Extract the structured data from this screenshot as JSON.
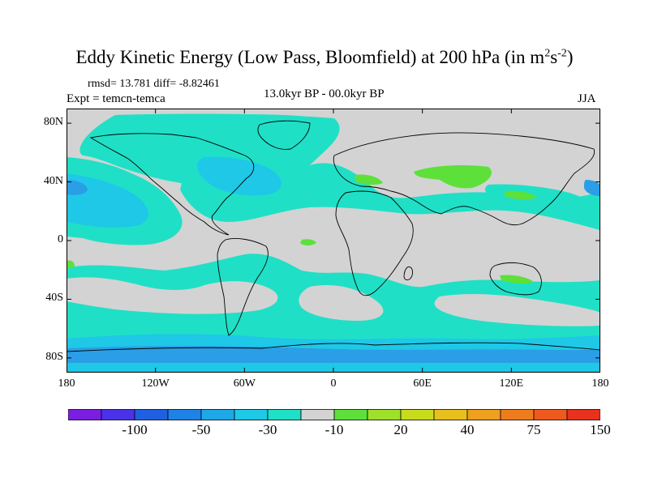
{
  "title": {
    "main": "Eddy Kinetic Energy (Low Pass, Bloomfield) at 200 hPa (in m",
    "sup1": "2",
    "mid": "s",
    "sup2": "-2",
    "end": ")"
  },
  "stats": "rmsd= 13.781 diff= -8.82461",
  "experiment": "Expt = temcn-temca",
  "period": "13.0kyr BP - 00.0kyr BP",
  "season": "JJA",
  "map": {
    "lon_range": [
      -180,
      180
    ],
    "lat_range": [
      -90,
      90
    ],
    "y_ticks": [
      {
        "label": "80N",
        "lat": 80
      },
      {
        "label": "40N",
        "lat": 40
      },
      {
        "label": "0",
        "lat": 0
      },
      {
        "label": "40S",
        "lat": -40
      },
      {
        "label": "80S",
        "lat": -80
      }
    ],
    "x_ticks": [
      {
        "label": "180",
        "lon": -180
      },
      {
        "label": "120W",
        "lon": -120
      },
      {
        "label": "60W",
        "lon": -60
      },
      {
        "label": "0",
        "lon": 0
      },
      {
        "label": "60E",
        "lon": 60
      },
      {
        "label": "120E",
        "lon": 120
      },
      {
        "label": "180",
        "lon": 180
      }
    ],
    "background_color": "#d3d3d3",
    "level_colors": {
      "cyan": "#1fe0c6",
      "light_blue": "#1ec8e6",
      "blue": "#2a9ee6",
      "green": "#5ee03a"
    }
  },
  "colorbar": {
    "colors": [
      "#7a1ee0",
      "#4a32e8",
      "#2060e0",
      "#1f82e6",
      "#1ea8e8",
      "#1ec8e6",
      "#1fe0c6",
      "#d3d3d3",
      "#5ee03a",
      "#9ee02a",
      "#c8dc1e",
      "#e8c01e",
      "#eea01e",
      "#ee7c1e",
      "#ee5a1e",
      "#e8321e"
    ],
    "labels": [
      {
        "text": "-100",
        "index": 2
      },
      {
        "text": "-50",
        "index": 4
      },
      {
        "text": "-30",
        "index": 6
      },
      {
        "text": "-10",
        "index": 8
      },
      {
        "text": "20",
        "index": 10
      },
      {
        "text": "40",
        "index": 12
      },
      {
        "text": "75",
        "index": 14
      },
      {
        "text": "150",
        "index": 16
      }
    ]
  }
}
